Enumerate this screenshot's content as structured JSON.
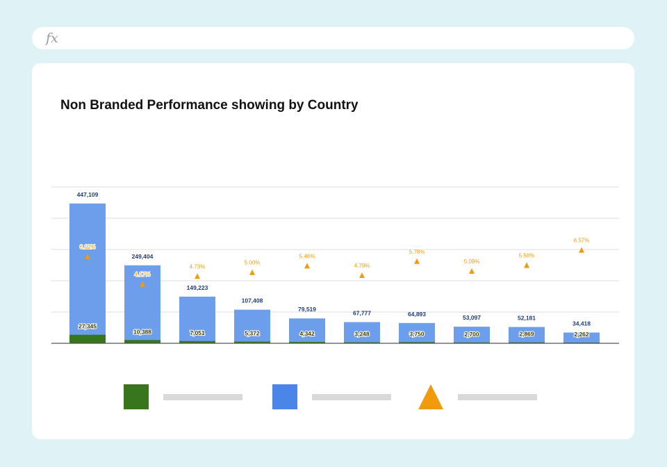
{
  "formula_bar": {
    "icon": "fx-icon",
    "label": "fx",
    "value": ""
  },
  "colors": {
    "green": "#38761d",
    "blue": "#6d9eeb",
    "blue_legend": "#4a86e8",
    "orange": "#f29a0e",
    "value_label": "#1f3d7a",
    "placeholder": "#d9d9d9"
  },
  "chart_data": {
    "type": "bar",
    "title": "Non Branded Performance showing by Country",
    "xlabel": "",
    "ylabel": "",
    "ylim": [
      0,
      500000
    ],
    "yticks": [
      0,
      100000,
      200000,
      300000,
      400000,
      500000
    ],
    "grid": true,
    "categories": [
      "",
      "",
      "",
      "",
      "",
      "",
      "",
      "",
      "",
      ""
    ],
    "series": [
      {
        "kind": "bar",
        "color": "#6d9eeb",
        "values": [
          447109,
          249404,
          149223,
          107408,
          79519,
          67777,
          64893,
          53097,
          52181,
          34418
        ],
        "labels": [
          "447,109",
          "249,404",
          "149,223",
          "107,408",
          "79,519",
          "67,777",
          "64,893",
          "53,097",
          "52,181",
          "34,418"
        ]
      },
      {
        "kind": "bar",
        "color": "#38761d",
        "values": [
          27345,
          10388,
          7051,
          5372,
          4342,
          3248,
          3750,
          2700,
          2869,
          2262
        ],
        "labels": [
          "27,345",
          "10,388",
          "7,051",
          "5,372",
          "4,342",
          "3,248",
          "3,750",
          "2,700",
          "2,869",
          "2,262"
        ]
      },
      {
        "kind": "marker",
        "marker": "triangle",
        "color": "#f29a0e",
        "values": [
          6.12,
          4.17,
          4.73,
          5.0,
          5.46,
          4.79,
          5.78,
          5.09,
          5.5,
          6.57
        ],
        "labels": [
          "6.12%",
          "4.17%",
          "4.73%",
          "5.00%",
          "5.46%",
          "4.79%",
          "5.78%",
          "5.09%",
          "5.50%",
          "6.57%"
        ],
        "ylim": [
          0,
          11
        ]
      }
    ],
    "legend": {
      "position": "bottom",
      "entries": [
        {
          "color": "#38761d",
          "shape": "square"
        },
        {
          "color": "#4a86e8",
          "shape": "square"
        },
        {
          "color": "#f29a0e",
          "shape": "triangle"
        }
      ]
    }
  }
}
